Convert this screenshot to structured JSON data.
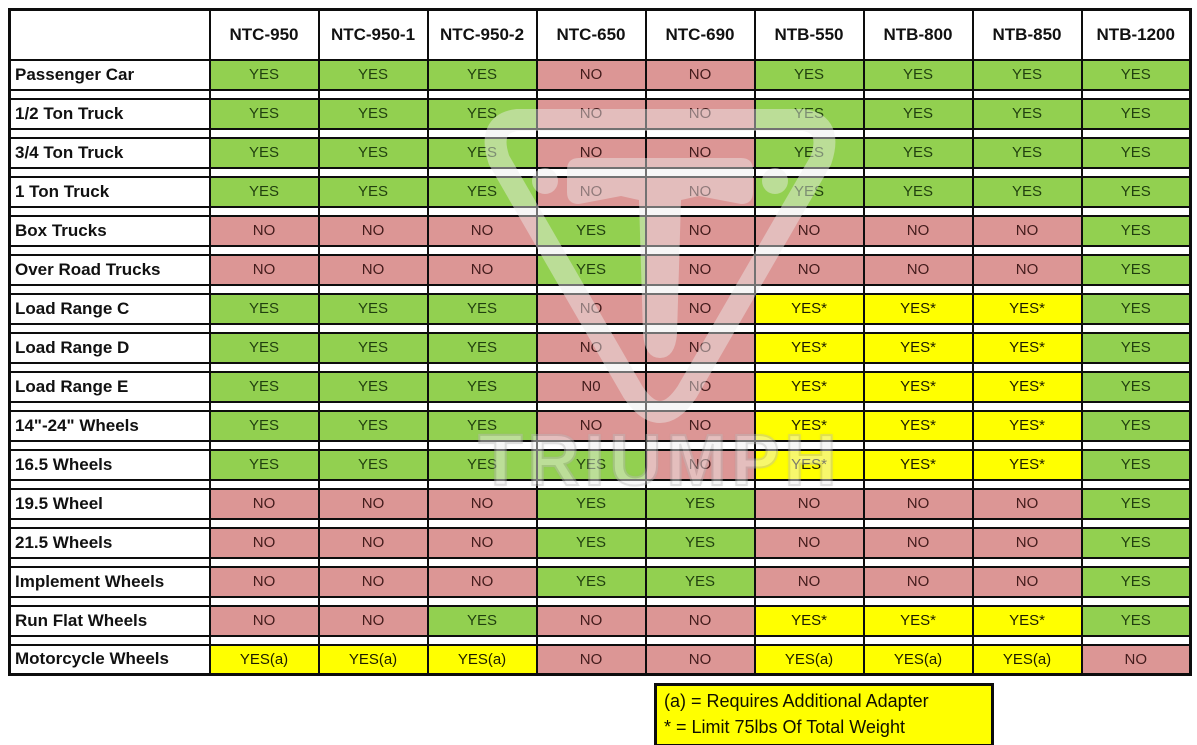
{
  "chart_data": {
    "type": "table",
    "title": "Tire changer model compatibility matrix",
    "columns": [
      "NTC-950",
      "NTC-950-1",
      "NTC-950-2",
      "NTC-650",
      "NTC-690",
      "NTB-550",
      "NTB-800",
      "NTB-850",
      "NTB-1200"
    ],
    "rows": [
      {
        "label": "Passenger Car",
        "values": [
          "YES",
          "YES",
          "YES",
          "NO",
          "NO",
          "YES",
          "YES",
          "YES",
          "YES"
        ]
      },
      {
        "label": "1/2 Ton Truck",
        "values": [
          "YES",
          "YES",
          "YES",
          "NO",
          "NO",
          "YES",
          "YES",
          "YES",
          "YES"
        ]
      },
      {
        "label": "3/4 Ton Truck",
        "values": [
          "YES",
          "YES",
          "YES",
          "NO",
          "NO",
          "YES",
          "YES",
          "YES",
          "YES"
        ]
      },
      {
        "label": "1 Ton Truck",
        "values": [
          "YES",
          "YES",
          "YES",
          "NO",
          "NO",
          "YES",
          "YES",
          "YES",
          "YES"
        ]
      },
      {
        "label": "Box Trucks",
        "values": [
          "NO",
          "NO",
          "NO",
          "YES",
          "NO",
          "NO",
          "NO",
          "NO",
          "YES"
        ]
      },
      {
        "label": "Over Road Trucks",
        "values": [
          "NO",
          "NO",
          "NO",
          "YES",
          "NO",
          "NO",
          "NO",
          "NO",
          "YES"
        ]
      },
      {
        "label": "Load Range C",
        "values": [
          "YES",
          "YES",
          "YES",
          "NO",
          "NO",
          "YES*",
          "YES*",
          "YES*",
          "YES"
        ]
      },
      {
        "label": "Load Range D",
        "values": [
          "YES",
          "YES",
          "YES",
          "NO",
          "NO",
          "YES*",
          "YES*",
          "YES*",
          "YES"
        ]
      },
      {
        "label": "Load Range E",
        "values": [
          "YES",
          "YES",
          "YES",
          "N0",
          "NO",
          "YES*",
          "YES*",
          "YES*",
          "YES"
        ]
      },
      {
        "label": "14\"-24\" Wheels",
        "values": [
          "YES",
          "YES",
          "YES",
          "NO",
          "NO",
          "YES*",
          "YES*",
          "YES*",
          "YES"
        ]
      },
      {
        "label": "16.5 Wheels",
        "values": [
          "YES",
          "YES",
          "YES",
          "YES",
          "NO",
          "YES*",
          "YES*",
          "YES*",
          "YES"
        ]
      },
      {
        "label": "19.5 Wheel",
        "values": [
          "NO",
          "NO",
          "NO",
          "YES",
          "YES",
          "NO",
          "NO",
          "NO",
          "YES"
        ]
      },
      {
        "label": "21.5 Wheels",
        "values": [
          "NO",
          "NO",
          "NO",
          "YES",
          "YES",
          "NO",
          "NO",
          "NO",
          "YES"
        ]
      },
      {
        "label": "Implement Wheels",
        "values": [
          "NO",
          "NO",
          "NO",
          "YES",
          "YES",
          "NO",
          "NO",
          "NO",
          "YES"
        ]
      },
      {
        "label": "Run Flat Wheels",
        "values": [
          "NO",
          "NO",
          "YES",
          "NO",
          "NO",
          "YES*",
          "YES*",
          "YES*",
          "YES"
        ]
      },
      {
        "label": "Motorcycle Wheels",
        "values": [
          "YES(a)",
          "YES(a)",
          "YES(a)",
          "NO",
          "NO",
          "YES(a)",
          "YES(a)",
          "YES(a)",
          "NO"
        ]
      }
    ]
  },
  "legend": {
    "adapter_note": "(a) = Requires Additional Adapter",
    "weight_note": "* = Limit 75lbs Of Total Weight"
  },
  "watermark": {
    "brand": "TRIUMPH"
  },
  "colors": {
    "yes_green": "#92d050",
    "no_red": "#dc9695",
    "conditional_yellow": "#ffff00",
    "border_black": "#0d0d0d"
  }
}
